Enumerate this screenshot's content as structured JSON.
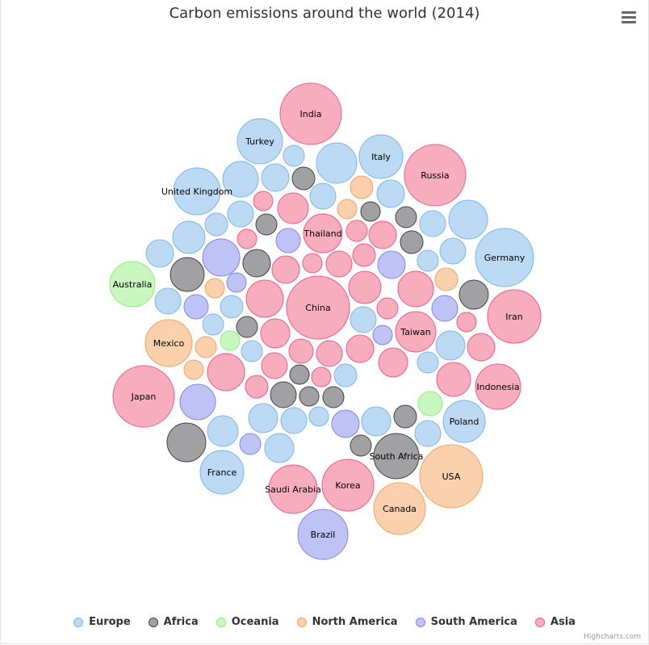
{
  "chart_data": {
    "type": "bubble",
    "title": "Carbon emissions around the world (2014)",
    "series": [
      {
        "name": "Europe",
        "color": "#7cb5ec",
        "points": [
          "Turkey",
          "Italy",
          "United Kingdom",
          "Germany",
          "Poland",
          "France",
          "",
          "",
          "",
          "",
          "",
          "",
          "",
          "",
          "",
          "",
          "",
          "",
          "",
          "",
          "",
          "",
          "",
          "",
          "",
          "",
          "",
          "",
          "",
          "",
          "",
          "",
          "",
          "",
          ""
        ]
      },
      {
        "name": "Africa",
        "color": "#434348",
        "points": [
          "South Africa",
          "",
          "",
          "",
          "",
          "",
          "",
          "",
          "",
          "",
          "",
          "",
          "",
          "",
          "",
          "",
          "",
          "",
          ""
        ]
      },
      {
        "name": "Oceania",
        "color": "#90ed7d",
        "points": [
          "Australia",
          "",
          ""
        ]
      },
      {
        "name": "North America",
        "color": "#f7a35c",
        "points": [
          "Mexico",
          "USA",
          "Canada",
          "",
          "",
          "",
          "",
          "",
          ""
        ]
      },
      {
        "name": "South America",
        "color": "#8085e9",
        "points": [
          "Brazil",
          "",
          "",
          "",
          "",
          "",
          "",
          "",
          "",
          "",
          ""
        ]
      },
      {
        "name": "Asia",
        "color": "#f15c80",
        "points": [
          "India",
          "Russia",
          "Thailand",
          "China",
          "Iran",
          "Taiwan",
          "Japan",
          "Indonesia",
          "Korea",
          "Saudi Arabia",
          "",
          "",
          "",
          "",
          "",
          "",
          "",
          "",
          "",
          "",
          "",
          "",
          "",
          "",
          "",
          "",
          "",
          "",
          "",
          "",
          "",
          "",
          "",
          "",
          ""
        ]
      }
    ],
    "legend_position": "bottom-center"
  },
  "credits": "Highcharts.com"
}
